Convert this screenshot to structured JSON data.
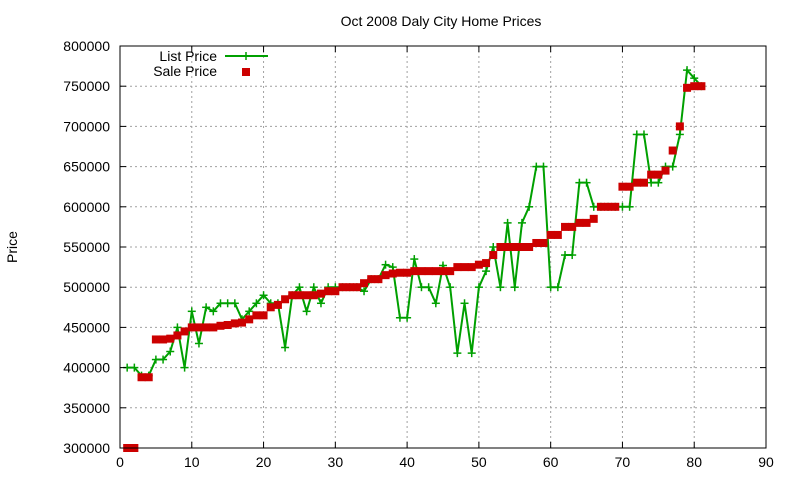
{
  "chart_data": {
    "type": "scatter",
    "title": "Oct 2008 Daly City Home Prices",
    "xlabel": "",
    "ylabel": "Price",
    "xlim": [
      0,
      90
    ],
    "ylim": [
      300000,
      800000
    ],
    "xticks": [
      0,
      10,
      20,
      30,
      40,
      50,
      60,
      70,
      80,
      90
    ],
    "yticks": [
      300000,
      350000,
      400000,
      450000,
      500000,
      550000,
      600000,
      650000,
      700000,
      750000,
      800000
    ],
    "grid": true,
    "legend_position": "top-left",
    "series": [
      {
        "name": "List Price",
        "style": "linespoints",
        "color": "#00a000",
        "marker": "plus",
        "x": [
          1,
          2,
          3,
          4,
          5,
          6,
          7,
          8,
          9,
          10,
          11,
          12,
          13,
          14,
          15,
          16,
          17,
          18,
          19,
          20,
          21,
          22,
          23,
          24,
          25,
          26,
          27,
          28,
          29,
          30,
          31,
          32,
          33,
          34,
          35,
          36,
          37,
          38,
          39,
          40,
          41,
          42,
          43,
          44,
          45,
          46,
          47,
          48,
          49,
          50,
          51,
          52,
          53,
          54,
          55,
          56,
          57,
          58,
          59,
          60,
          61,
          62,
          63,
          64,
          65,
          66,
          67,
          68,
          69,
          70,
          71,
          72,
          73,
          74,
          75,
          76,
          77,
          78,
          79,
          80,
          81
        ],
        "y": [
          400000,
          400000,
          390000,
          390000,
          410000,
          410000,
          420000,
          450000,
          400000,
          470000,
          430000,
          475000,
          470000,
          480000,
          480000,
          480000,
          460000,
          470000,
          480000,
          490000,
          480000,
          480000,
          425000,
          490000,
          500000,
          470000,
          500000,
          480000,
          500000,
          500000,
          500000,
          500000,
          500000,
          495000,
          510000,
          510000,
          528000,
          525000,
          462000,
          462000,
          535000,
          500000,
          500000,
          480000,
          527000,
          500000,
          418000,
          480000,
          418000,
          500000,
          520000,
          550000,
          500000,
          580000,
          500000,
          580000,
          600000,
          650000,
          650000,
          500000,
          500000,
          540000,
          540000,
          630000,
          630000,
          600000,
          600000,
          600000,
          600000,
          600000,
          600000,
          690000,
          690000,
          630000,
          630000,
          650000,
          650000,
          690000,
          770000,
          760000,
          750000
        ]
      },
      {
        "name": "Sale Price",
        "style": "points",
        "color": "#cc0000",
        "marker": "square",
        "x": [
          1,
          2,
          3,
          4,
          5,
          6,
          7,
          8,
          9,
          10,
          11,
          12,
          13,
          14,
          15,
          16,
          17,
          18,
          19,
          20,
          21,
          22,
          23,
          24,
          25,
          26,
          27,
          28,
          29,
          30,
          31,
          32,
          33,
          34,
          35,
          36,
          37,
          38,
          39,
          40,
          41,
          42,
          43,
          44,
          45,
          46,
          47,
          48,
          49,
          50,
          51,
          52,
          53,
          54,
          55,
          56,
          57,
          58,
          59,
          60,
          61,
          62,
          63,
          64,
          65,
          66,
          67,
          68,
          69,
          70,
          71,
          72,
          73,
          74,
          75,
          76,
          77,
          78,
          79,
          80,
          81
        ],
        "y": [
          300000,
          300000,
          388000,
          388000,
          435000,
          435000,
          436000,
          440000,
          445000,
          450000,
          450000,
          450000,
          450000,
          452000,
          453000,
          455000,
          456000,
          460000,
          465000,
          465000,
          475000,
          478000,
          485000,
          490000,
          490000,
          490000,
          490000,
          492000,
          495000,
          495000,
          500000,
          500000,
          500000,
          505000,
          510000,
          510000,
          515000,
          517000,
          518000,
          518000,
          520000,
          520000,
          520000,
          520000,
          520000,
          520000,
          525000,
          525000,
          525000,
          528000,
          530000,
          540000,
          550000,
          550000,
          550000,
          550000,
          550000,
          555000,
          555000,
          565000,
          565000,
          575000,
          575000,
          580000,
          580000,
          585000,
          600000,
          600000,
          600000,
          625000,
          625000,
          630000,
          630000,
          640000,
          640000,
          645000,
          670000,
          700000,
          748000,
          750000,
          750000
        ]
      }
    ]
  }
}
